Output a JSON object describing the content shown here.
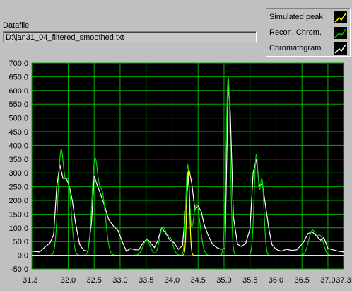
{
  "datafile": {
    "label": "Datafile",
    "path": "D:\\jan31_04_filtered_smoothed.txt"
  },
  "legend": [
    {
      "name": "Simulated peak",
      "color": "#ffff00"
    },
    {
      "name": "Recon. Chrom.",
      "color": "#00d800"
    },
    {
      "name": "Chromatogram",
      "color": "#ffffff"
    }
  ],
  "colors": {
    "plot_background": "#000000",
    "grid": "#00b000",
    "panel": "#c0c0c0"
  },
  "chart_data": {
    "type": "line",
    "xlim": [
      31.3,
      37.3
    ],
    "ylim": [
      -50,
      700
    ],
    "x_ticks": [
      "31.3",
      "32.0",
      "32.5",
      "33.0",
      "33.5",
      "34.0",
      "34.5",
      "35.0",
      "35.5",
      "36.0",
      "36.5",
      "37.0",
      "37.3"
    ],
    "y_ticks": [
      "-50.0",
      "0.0",
      "50.0",
      "100.0",
      "150.0",
      "200.0",
      "250.0",
      "300.0",
      "350.0",
      "400.0",
      "450.0",
      "500.0",
      "550.0",
      "600.0",
      "650.0",
      "700.0"
    ],
    "grid": true,
    "series": [
      {
        "name": "Chromatogram",
        "color": "#ffffff",
        "points": [
          [
            31.3,
            15
          ],
          [
            31.45,
            12
          ],
          [
            31.55,
            30
          ],
          [
            31.65,
            45
          ],
          [
            31.72,
            75
          ],
          [
            31.78,
            250
          ],
          [
            31.84,
            330
          ],
          [
            31.9,
            280
          ],
          [
            31.96,
            280
          ],
          [
            32.02,
            255
          ],
          [
            32.08,
            200
          ],
          [
            32.14,
            120
          ],
          [
            32.22,
            40
          ],
          [
            32.3,
            18
          ],
          [
            32.38,
            15
          ],
          [
            32.45,
            120
          ],
          [
            32.5,
            290
          ],
          [
            32.55,
            260
          ],
          [
            32.62,
            225
          ],
          [
            32.7,
            180
          ],
          [
            32.78,
            130
          ],
          [
            32.88,
            105
          ],
          [
            32.96,
            90
          ],
          [
            33.04,
            50
          ],
          [
            33.12,
            15
          ],
          [
            33.2,
            25
          ],
          [
            33.28,
            20
          ],
          [
            33.36,
            20
          ],
          [
            33.44,
            45
          ],
          [
            33.52,
            60
          ],
          [
            33.6,
            42
          ],
          [
            33.66,
            28
          ],
          [
            33.72,
            52
          ],
          [
            33.8,
            100
          ],
          [
            33.88,
            80
          ],
          [
            33.96,
            55
          ],
          [
            34.04,
            45
          ],
          [
            34.12,
            22
          ],
          [
            34.2,
            35
          ],
          [
            34.28,
            210
          ],
          [
            34.33,
            310
          ],
          [
            34.38,
            260
          ],
          [
            34.44,
            165
          ],
          [
            34.5,
            180
          ],
          [
            34.56,
            160
          ],
          [
            34.62,
            110
          ],
          [
            34.7,
            70
          ],
          [
            34.78,
            40
          ],
          [
            34.86,
            28
          ],
          [
            34.94,
            22
          ],
          [
            35.02,
            25
          ],
          [
            35.08,
            620
          ],
          [
            35.12,
            520
          ],
          [
            35.18,
            140
          ],
          [
            35.26,
            40
          ],
          [
            35.34,
            32
          ],
          [
            35.42,
            45
          ],
          [
            35.5,
            95
          ],
          [
            35.56,
            300
          ],
          [
            35.62,
            350
          ],
          [
            35.68,
            255
          ],
          [
            35.74,
            260
          ],
          [
            35.8,
            180
          ],
          [
            35.86,
            100
          ],
          [
            35.92,
            40
          ],
          [
            36.0,
            22
          ],
          [
            36.1,
            15
          ],
          [
            36.2,
            22
          ],
          [
            36.3,
            18
          ],
          [
            36.4,
            20
          ],
          [
            36.52,
            45
          ],
          [
            36.62,
            80
          ],
          [
            36.7,
            85
          ],
          [
            36.78,
            70
          ],
          [
            36.86,
            55
          ],
          [
            36.92,
            65
          ],
          [
            37.0,
            25
          ],
          [
            37.1,
            20
          ],
          [
            37.2,
            15
          ],
          [
            37.3,
            12
          ]
        ]
      },
      {
        "name": "Recon. Chrom.",
        "color": "#00d800",
        "peaks": [
          [
            31.86,
            365,
            0.055
          ],
          [
            32.0,
            260,
            0.06
          ],
          [
            32.51,
            320,
            0.055
          ],
          [
            32.65,
            225,
            0.07
          ],
          [
            33.51,
            55,
            0.07
          ],
          [
            33.82,
            100,
            0.06
          ],
          [
            33.96,
            60,
            0.06
          ],
          [
            34.3,
            320,
            0.035
          ],
          [
            34.47,
            185,
            0.07
          ],
          [
            35.08,
            650,
            0.04
          ],
          [
            35.62,
            360,
            0.04
          ],
          [
            35.73,
            270,
            0.04
          ],
          [
            36.7,
            90,
            0.07
          ],
          [
            36.86,
            65,
            0.06
          ]
        ]
      },
      {
        "name": "Simulated peak",
        "color": "#ffff00",
        "peaks": [
          [
            34.31,
            305,
            0.028
          ]
        ]
      }
    ]
  }
}
